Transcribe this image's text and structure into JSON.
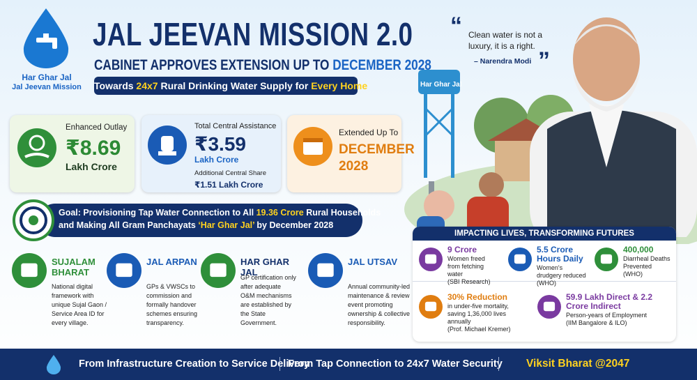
{
  "logo": {
    "line1": "Har Ghar Jal",
    "line2": "Jal Jeevan Mission"
  },
  "header": {
    "title": "JAL JEEVAN MISSION 2.0",
    "subtitle_prefix": "CABINET APPROVES EXTENSION UP TO",
    "subtitle_highlight": "DECEMBER 2028",
    "tagline_prefix": "Towards",
    "tagline_highlight1": "24x7",
    "tagline_middle": "Rural Drinking Water Supply for",
    "tagline_highlight2": "Every Home"
  },
  "quote": {
    "open": "“",
    "text": "Clean water is not a luxury, it is a right.",
    "author": "– Narendra Modi",
    "close": "”"
  },
  "tank_label": "Har Ghar Jal",
  "stats": [
    {
      "label": "Enhanced Outlay",
      "value": "₹8.69",
      "unit": "Lakh Crore"
    },
    {
      "label": "Total Central Assistance",
      "value": "₹3.59",
      "unit": "Lakh Crore",
      "extra_label": "Additional Central Share",
      "extra_value": "₹1.51 Lakh Crore"
    },
    {
      "label": "Extended Up To",
      "value": "DECEMBER 2028"
    }
  ],
  "goal": {
    "line1_prefix": "Goal: Provisioning Tap Water Connection to All",
    "line1_highlight": "19.36 Crore",
    "line1_suffix": "Rural Households",
    "line2_prefix": "and Making All Gram Panchayats",
    "line2_highlight": "‘Har Ghar Jal’",
    "line2_suffix": "by December 2028"
  },
  "pillars": [
    {
      "title": "SUJALAM BHARAT",
      "text": "National digital framework with unique Sujal Gaon / Service Area ID for every village."
    },
    {
      "title": "JAL ARPAN",
      "text": "GPs & VWSCs to commission and formally handover schemes ensuring transparency."
    },
    {
      "title": "HAR GHAR JAL",
      "text": "GP certification only after adequate O&M mechanisms are established by the State Government."
    },
    {
      "title": "JAL UTSAV",
      "text": "Annual community-led maintenance & review event promoting ownership & collective responsibility."
    }
  ],
  "impact": {
    "title": "IMPACTING LIVES, TRANSFORMING FUTURES",
    "items": [
      {
        "headline": "9 Crore",
        "text": "Women freed from fetching water",
        "source": "(SBI Research)"
      },
      {
        "headline": "5.5 Crore Hours Daily",
        "text": "Women's drudgery reduced (WHO)"
      },
      {
        "headline": "400,000",
        "text": "Diarrheal Deaths Prevented",
        "source": "(WHO)"
      },
      {
        "headline": "30% Reduction",
        "text": "in under-five mortality, saving 1,36,000 lives annually",
        "source": "(Prof. Michael Kremer)"
      },
      {
        "headline": "59.9 Lakh Direct & 2.2 Crore Indirect",
        "text": "Person-years of Employment",
        "source": "(IIM Bangalore & ILO)"
      }
    ]
  },
  "footer": {
    "left": "From Infrastructure Creation to Service Delivery",
    "right": "From Tap Connection to 24x7 Water Security",
    "slogan": "Viksit Bharat @2047"
  }
}
